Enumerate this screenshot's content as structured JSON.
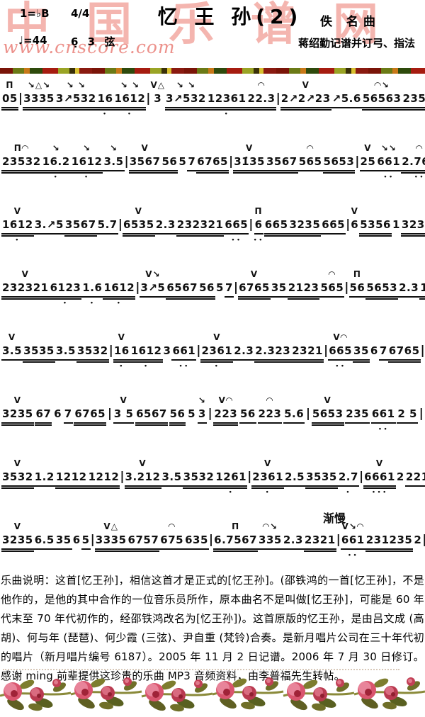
{
  "header": {
    "watermark_title": "中国乐谱网",
    "watermark_url": "www.cnscore.com",
    "key_signature": "1=♭B",
    "time_signature": "4/4",
    "title": "忆 王 孙(2)",
    "composer": "佚  名曲",
    "tempo": "♩=44",
    "tuning": "6̣ 3 弦",
    "transcriber": "蒋绍勤记谱并订弓、指法"
  },
  "score": {
    "tempo_change_label": "渐慢",
    "legend": {
      "down_bow": "Π",
      "up_bow": "V",
      "slide_down": "↘",
      "slide_up": "↗",
      "harmonic": "△",
      "slur": "◠"
    },
    "lines": [
      {
        "tokens": [
          {
            "t": "05",
            "o": "Π",
            "u": 2
          },
          {
            "t": "|"
          },
          {
            "t": "3335",
            "o": "↘△↘",
            "u": 2
          },
          {
            "t": "3↗532",
            "o": "↘ ↘",
            "u": 2
          },
          {
            "t": "16",
            "u": 2,
            "d": 1
          },
          {
            "t": "1612",
            "o": "↘ ↘",
            "u": 2,
            "d": 1
          },
          {
            "t": "|"
          },
          {
            "t": "3",
            "o": "V△",
            "u": 0
          },
          {
            "t": "3↗532",
            "o": "↘ ↘",
            "u": 2
          },
          {
            "t": "12361",
            "u": 2,
            "d": 1
          },
          {
            "t": "22.3",
            "o": "◠",
            "u": 2
          },
          {
            "t": "|"
          },
          {
            "t": "2↗2↗23",
            "o": "V",
            "u": 2
          },
          {
            "t": "↗5.6",
            "u": 1
          },
          {
            "t": "56563",
            "o": "◠↘",
            "u": 2
          },
          {
            "t": "23553",
            "u": 2
          },
          {
            "t": "|"
          }
        ]
      },
      {
        "tokens": [
          {
            "t": "23532",
            "o": "Π◠",
            "u": 2
          },
          {
            "t": "16.2",
            "o": "↘",
            "u": 2,
            "d": 1
          },
          {
            "t": "1612",
            "o": "↘",
            "u": 2,
            "d": 1
          },
          {
            "t": "3.5",
            "o": "↘",
            "u": 1
          },
          {
            "t": "|"
          },
          {
            "t": "3567",
            "o": "V",
            "u": 2
          },
          {
            "t": "56",
            "u": 2
          },
          {
            "t": "5",
            "u": 0
          },
          {
            "t": "7",
            "u": 1
          },
          {
            "t": "6765",
            "u": 2
          },
          {
            "t": "|"
          },
          {
            "t": "31̇35",
            "o": "V",
            "u": 2
          },
          {
            "t": "3567",
            "u": 2
          },
          {
            "t": "565",
            "o": "◠",
            "u": 1
          },
          {
            "t": "5653",
            "u": 2
          },
          {
            "t": "|"
          },
          {
            "t": "25",
            "o": "V",
            "u": 1
          },
          {
            "t": "661",
            "o": "↘↘",
            "u": 1,
            "d": 2
          },
          {
            "t": "2.762",
            "o": "◠",
            "u": 2,
            "d": 2
          },
          {
            "t": "1.6",
            "u": 1,
            "d": 1
          },
          {
            "t": "|"
          }
        ]
      },
      {
        "tokens": [
          {
            "t": "1612",
            "o": "V",
            "u": 2,
            "d": 1
          },
          {
            "t": "3.↗5",
            "u": 1
          },
          {
            "t": "3567",
            "u": 2
          },
          {
            "t": "5.7",
            "u": 1
          },
          {
            "t": "|"
          },
          {
            "t": "6535",
            "o": "V",
            "u": 2
          },
          {
            "t": "2.3",
            "u": 1
          },
          {
            "t": "232321",
            "u": 2
          },
          {
            "t": "665",
            "u": 1,
            "d": 2
          },
          {
            "t": "|"
          },
          {
            "t": "6",
            "o": "Π",
            "u": 1,
            "d": 2
          },
          {
            "t": "665",
            "u": 2
          },
          {
            "t": "3235",
            "u": 2
          },
          {
            "t": "665",
            "u": 1
          },
          {
            "t": "|"
          },
          {
            "t": "6",
            "o": "V",
            "u": 0
          },
          {
            "t": "5356",
            "u": 2
          },
          {
            "t": "1",
            "u": 0
          },
          {
            "t": "3235",
            "u": 2
          },
          {
            "t": "|"
          }
        ]
      },
      {
        "tokens": [
          {
            "t": "232321",
            "o": "V",
            "u": 2
          },
          {
            "t": "6123",
            "u": 2,
            "d": 1
          },
          {
            "t": "1.6",
            "u": 1,
            "d": 1
          },
          {
            "t": "1612",
            "u": 2,
            "d": 1
          },
          {
            "t": "|"
          },
          {
            "t": "3↗5",
            "o": "V↘",
            "u": 1
          },
          {
            "t": "6567",
            "u": 2
          },
          {
            "t": "56",
            "u": 2
          },
          {
            "t": "5",
            "u": 0
          },
          {
            "t": "7",
            "u": 1
          },
          {
            "t": "|"
          },
          {
            "t": "6765",
            "o": "V",
            "u": 2
          },
          {
            "t": "35",
            "u": 1
          },
          {
            "t": "2123",
            "u": 2
          },
          {
            "t": "565",
            "o": "◠",
            "u": 1
          },
          {
            "t": "|"
          },
          {
            "t": "56",
            "o": "Π",
            "u": 1
          },
          {
            "t": "5653",
            "u": 2
          },
          {
            "t": "2.3",
            "u": 1
          },
          {
            "t": "1612",
            "u": 2,
            "d": 1
          },
          {
            "t": "|"
          }
        ]
      },
      {
        "tokens": [
          {
            "t": "3.5",
            "o": "V",
            "u": 1
          },
          {
            "t": "3535",
            "u": 2
          },
          {
            "t": "3.5",
            "u": 1
          },
          {
            "t": "3532",
            "u": 2
          },
          {
            "t": "|"
          },
          {
            "t": "16",
            "o": "V",
            "u": 2,
            "d": 1
          },
          {
            "t": "1612",
            "u": 2,
            "d": 1
          },
          {
            "t": "3",
            "u": 0
          },
          {
            "t": "661",
            "u": 1,
            "d": 2
          },
          {
            "t": "|"
          },
          {
            "t": "2361",
            "o": "V",
            "u": 2,
            "d": 1
          },
          {
            "t": "2.3",
            "u": 1
          },
          {
            "t": "2.323",
            "u": 2
          },
          {
            "t": "2321",
            "u": 2
          },
          {
            "t": "|"
          },
          {
            "t": "665",
            "o": "V◠",
            "u": 1,
            "d": 2
          },
          {
            "t": "35",
            "u": 2
          },
          {
            "t": "6",
            "u": 0
          },
          {
            "t": "7",
            "u": 1
          },
          {
            "t": "6765",
            "u": 2
          },
          {
            "t": "|"
          }
        ]
      },
      {
        "tokens": [
          {
            "t": "3235",
            "o": "V",
            "u": 2
          },
          {
            "t": "67",
            "u": 2
          },
          {
            "t": "6",
            "u": 0
          },
          {
            "t": "7",
            "u": 1
          },
          {
            "t": "6765",
            "u": 2
          },
          {
            "t": "|"
          },
          {
            "t": "3 5",
            "o": "V",
            "u": 1
          },
          {
            "t": "6567",
            "u": 2
          },
          {
            "t": "56",
            "u": 2
          },
          {
            "t": "5",
            "u": 0
          },
          {
            "t": "3",
            "o": "↘",
            "u": 1
          },
          {
            "t": "|"
          },
          {
            "t": "223",
            "o": "V◠",
            "u": 2
          },
          {
            "t": "56",
            "u": 1
          },
          {
            "t": "223",
            "o": "◠",
            "u": 1
          },
          {
            "t": "5.6",
            "u": 1
          },
          {
            "t": "|"
          },
          {
            "t": "5653",
            "o": "V",
            "u": 2
          },
          {
            "t": "235",
            "u": 1
          },
          {
            "t": "661",
            "u": 1,
            "d": 2
          },
          {
            "t": "2 5",
            "u": 1
          },
          {
            "t": "|"
          }
        ]
      },
      {
        "tokens": [
          {
            "t": "3532",
            "o": "V",
            "u": 2
          },
          {
            "t": "1.2",
            "u": 1
          },
          {
            "t": "1212",
            "u": 2
          },
          {
            "t": "1212",
            "u": 2
          },
          {
            "t": "|"
          },
          {
            "t": "3.212",
            "o": "V",
            "u": 2
          },
          {
            "t": "3.5",
            "u": 1
          },
          {
            "t": "3532",
            "u": 2
          },
          {
            "t": "1261",
            "u": 2,
            "d": 1
          },
          {
            "t": "|"
          },
          {
            "t": "2361",
            "o": "V",
            "u": 2,
            "d": 1
          },
          {
            "t": "2.5",
            "u": 1
          },
          {
            "t": "3535",
            "u": 2
          },
          {
            "t": "2.7",
            "u": 1,
            "d": 1
          },
          {
            "t": "|"
          },
          {
            "t": "6661",
            "o": "V",
            "u": 2,
            "d": 3
          },
          {
            "t": "2",
            "u": 0
          },
          {
            "t": "221",
            "u": 1
          },
          {
            "t": "6.5",
            "u": 1,
            "d": 1
          },
          {
            "t": "|"
          }
        ]
      },
      {
        "tokens": [
          {
            "t": "3235",
            "o": "V",
            "u": 2
          },
          {
            "t": "6.5",
            "u": 1
          },
          {
            "t": "35",
            "u": 1
          },
          {
            "t": "6",
            "u": 0
          },
          {
            "t": "5",
            "u": 1
          },
          {
            "t": "|"
          },
          {
            "t": "3335",
            "o": "V△",
            "u": 2
          },
          {
            "t": "6757",
            "u": 2
          },
          {
            "t": "675",
            "o": "◠",
            "u": 1
          },
          {
            "t": "635",
            "u": 1
          },
          {
            "t": "|"
          },
          {
            "t": "6.7567",
            "o": "Π",
            "u": 2
          },
          {
            "t": "335",
            "o": "◠↘",
            "u": 1
          },
          {
            "t": "2.3",
            "u": 1
          },
          {
            "t": "2321",
            "u": 2
          },
          {
            "t": "|"
          },
          {
            "t": "661",
            "o": "V↘◠",
            "u": 1,
            "d": 2
          },
          {
            "t": "231235",
            "u": 2
          },
          {
            "t": "2",
            "u": 0
          },
          {
            "t": "‖"
          }
        ]
      }
    ]
  },
  "notes_section": {
    "text": "乐曲说明：这首[忆王孙]，相信这首才是正式的[忆王孙]。(邵铁鸿的一首[忆王孙]，不是他作的，是他的其中合作的一位音乐员所作，原本曲名不是叫做[忆王孙]，可能是 60 年代末至 70 年代初作的，经邵铁鸿改名为[忆王孙])。这首原版的忆王孙，是由吕文成 (高胡)、何与年 (琵琶)、何少霞 (三弦)、尹自重 (梵铃)合奏。是新月唱片公司在三十年代初的唱片（新月唱片编号 6187）。2005 年 11 月 2 日记谱。2006 年 7 月 30 日修订。感谢 ming 前辈提供这珍贵的乐曲 MP3 音频资料，由李普福先生转帖。"
  },
  "colors": {
    "watermark_pink": "#eb786e",
    "note_ink": "#111111",
    "rose_red": "#b93a50",
    "rose_pink": "#e8849a",
    "leaf_olive": "#6f6f28"
  }
}
